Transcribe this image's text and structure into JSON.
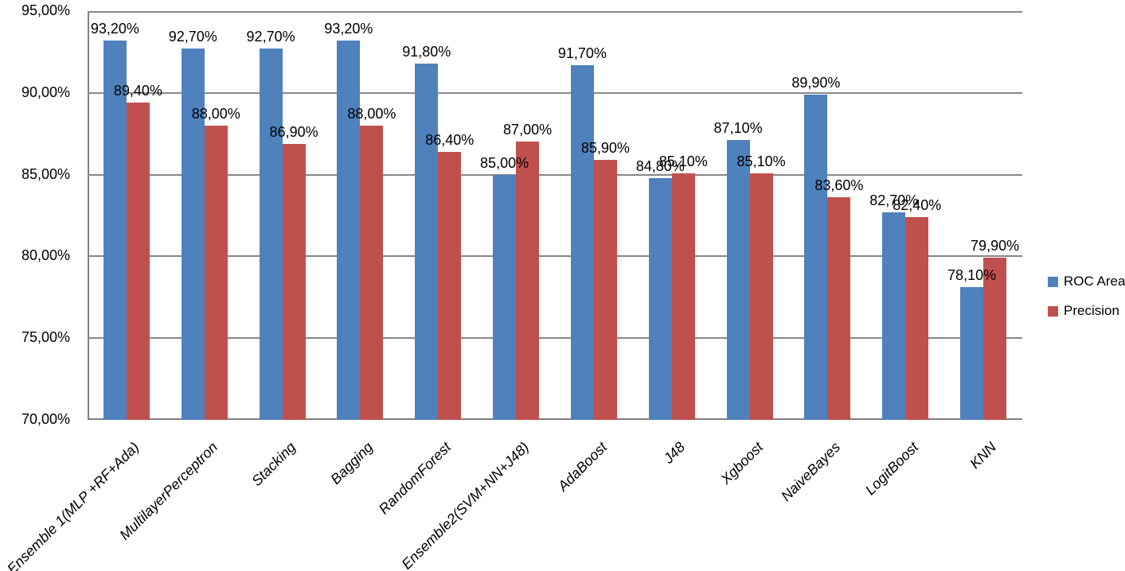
{
  "chart_data": {
    "type": "bar",
    "title": "",
    "categories": [
      "Ensemble 1(MLP +RF+Ada)",
      "MultilayerPerceptron",
      "Stacking",
      "Bagging",
      "RandomForest",
      "Ensemble2(SVM+NN+J48)",
      "AdaBoost",
      "J48",
      "Xgboost",
      "NaiveBayes",
      "LogitBoost",
      "KNN"
    ],
    "series": [
      {
        "name": "ROC Area",
        "color": "#4F81BD",
        "values": [
          93.2,
          92.7,
          92.7,
          93.2,
          91.8,
          85.0,
          91.7,
          84.8,
          87.1,
          89.9,
          82.7,
          78.1
        ],
        "labels": [
          "93,20%",
          "92,70%",
          "92,70%",
          "93,20%",
          "91,80%",
          "85,00%",
          "91,70%",
          "84,80%",
          "87,10%",
          "89,90%",
          "82,70%",
          "78,10%"
        ]
      },
      {
        "name": "Precision",
        "color": "#C0504D",
        "values": [
          89.4,
          88.0,
          86.9,
          88.0,
          86.4,
          87.0,
          85.9,
          85.1,
          85.1,
          83.6,
          82.4,
          79.9
        ],
        "labels": [
          "89,40%",
          "88,00%",
          "86,90%",
          "88,00%",
          "86,40%",
          "87,00%",
          "85,90%",
          "85,10%",
          "85,10%",
          "83,60%",
          "82,40%",
          "79,90%"
        ]
      }
    ],
    "ylim": [
      70,
      95
    ],
    "yticks": [
      {
        "value": 95,
        "label": "95,00%"
      },
      {
        "value": 90,
        "label": "90,00%"
      },
      {
        "value": 85,
        "label": "85,00%"
      },
      {
        "value": 80,
        "label": "80,00%"
      },
      {
        "value": 75,
        "label": "75,00%"
      },
      {
        "value": 70,
        "label": "70,00%"
      }
    ],
    "grid": true,
    "legend_position": "right",
    "value_suffix": "%",
    "decimal_separator": ",",
    "axis_color": "#808080",
    "gridline_color": "#878787",
    "text_color": "#000000"
  }
}
